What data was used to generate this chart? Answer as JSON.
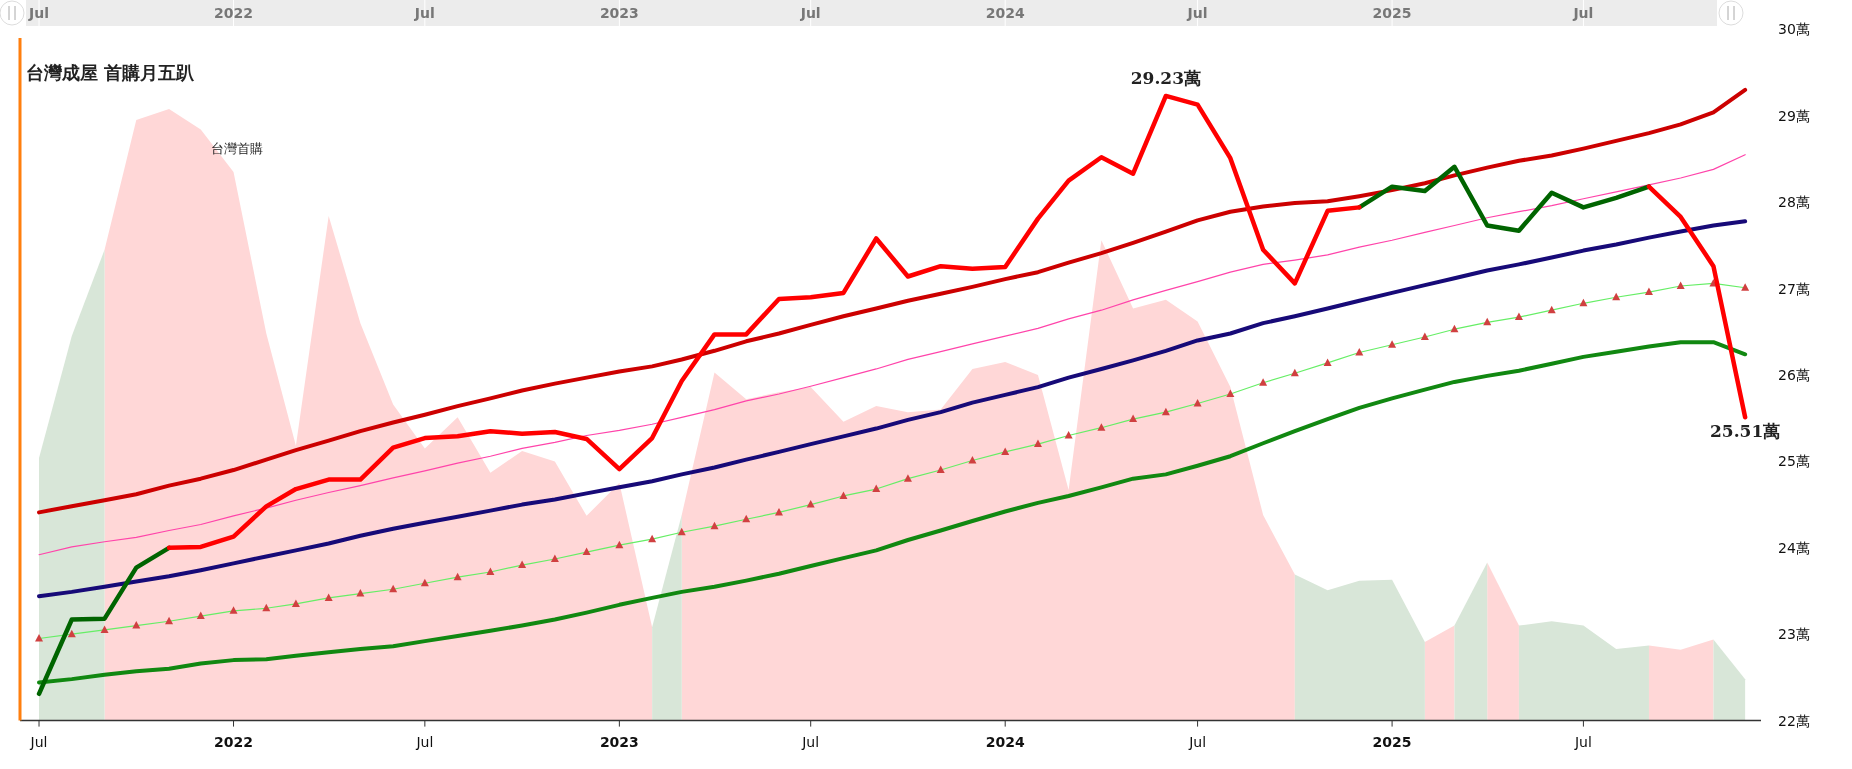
{
  "chart_data": {
    "type": "line",
    "title": "台灣成屋 首購月五趴",
    "x": [
      "2021-07",
      "2021-08",
      "2021-09",
      "2021-10",
      "2021-11",
      "2021-12",
      "2022-01",
      "2022-02",
      "2022-03",
      "2022-04",
      "2022-05",
      "2022-06",
      "2022-07",
      "2022-08",
      "2022-09",
      "2022-10",
      "2022-11",
      "2022-12",
      "2023-01",
      "2023-02",
      "2023-03",
      "2023-04",
      "2023-05",
      "2023-06",
      "2023-07",
      "2023-08",
      "2023-09",
      "2023-10",
      "2023-11",
      "2023-12",
      "2024-01",
      "2024-02",
      "2024-03",
      "2024-04",
      "2024-05",
      "2024-06",
      "2024-07",
      "2024-08",
      "2024-09",
      "2024-10",
      "2024-11",
      "2024-12",
      "2025-01",
      "2025-02",
      "2025-03",
      "2025-04",
      "2025-05",
      "2025-06",
      "2025-07",
      "2025-08",
      "2025-09",
      "2025-10",
      "2025-11",
      "2025-12"
    ],
    "xlim": [
      "2021-06-13",
      "2025-12-16"
    ],
    "xticks": [
      {
        "value": "2021-07",
        "label": "Jul"
      },
      {
        "value": "2022",
        "label": "2022"
      },
      {
        "value": "2022-07",
        "label": "Jul"
      },
      {
        "value": "2023",
        "label": "2023"
      },
      {
        "value": "2023-07",
        "label": "Jul"
      },
      {
        "value": "2024",
        "label": "2024"
      },
      {
        "value": "2024-07",
        "label": "Jul"
      },
      {
        "value": "2025",
        "label": "2025"
      },
      {
        "value": "2025-07",
        "label": "Jul"
      }
    ],
    "ylim": [
      22,
      30
    ],
    "yticks": [
      {
        "value": 22,
        "label": "22萬"
      },
      {
        "value": 23,
        "label": "23萬"
      },
      {
        "value": 24,
        "label": "24萬"
      },
      {
        "value": 25,
        "label": "25萬"
      },
      {
        "value": 26,
        "label": "26萬"
      },
      {
        "value": 27,
        "label": "27萬"
      },
      {
        "value": 28,
        "label": "28萬"
      },
      {
        "value": 29,
        "label": "29萬"
      },
      {
        "value": 30,
        "label": "30萬"
      }
    ],
    "grid": false,
    "legend": false,
    "series": [
      {
        "type": "area",
        "name": "台灣首購",
        "color": "#ffd7d7",
        "x": [
          "2021-09",
          "2021-10",
          "2021-11",
          "2021-12",
          "2022-01",
          "2022-02",
          "2022-03",
          "2022-04",
          "2022-05",
          "2022-06",
          "2022-07",
          "2022-08",
          "2022-09",
          "2022-10",
          "2022-11",
          "2022-12",
          "2023-01",
          "2023-02"
        ],
        "values": [
          27.45,
          28.95,
          29.08,
          28.84,
          28.35,
          26.48,
          25.18,
          27.84,
          26.6,
          25.66,
          25.15,
          25.51,
          24.87,
          25.12,
          25.0,
          24.37,
          24.75,
          23.08
        ]
      },
      {
        "type": "area",
        "color": "#ffd7d7",
        "x": [
          "2023-03",
          "2023-04",
          "2023-05",
          "2023-06",
          "2023-07",
          "2023-08",
          "2023-09",
          "2023-10",
          "2023-11",
          "2023-12",
          "2024-01",
          "2024-02",
          "2024-03",
          "2024-04",
          "2024-05",
          "2024-06",
          "2024-07",
          "2024-08",
          "2024-09",
          "2024-10"
        ],
        "values": [
          24.38,
          26.03,
          25.72,
          25.8,
          25.86,
          25.46,
          25.64,
          25.57,
          25.6,
          26.07,
          26.15,
          26.0,
          24.67,
          27.56,
          26.77,
          26.87,
          26.62,
          25.86,
          24.38,
          23.69
        ]
      },
      {
        "type": "area",
        "color": "#ffd7d7",
        "x": [
          "2025-02",
          "2025-03"
        ],
        "values": [
          22.91,
          23.1
        ]
      },
      {
        "type": "area",
        "color": "#ffd7d7",
        "x": [
          "2025-04",
          "2025-05"
        ],
        "values": [
          23.83,
          23.1
        ]
      },
      {
        "type": "area",
        "color": "#ffd7d7",
        "x": [
          "2025-09",
          "2025-10",
          "2025-11"
        ],
        "values": [
          22.87,
          22.82,
          22.94
        ]
      },
      {
        "type": "area",
        "color": "#d8e6d8",
        "x": [
          "2021-07",
          "2021-08",
          "2021-09"
        ],
        "values": [
          25.04,
          26.45,
          27.45
        ]
      },
      {
        "type": "area",
        "color": "#d8e6d8",
        "x": [
          "2023-02",
          "2023-03"
        ],
        "values": [
          23.08,
          24.38
        ]
      },
      {
        "type": "area",
        "color": "#d8e6d8",
        "x": [
          "2024-10",
          "2024-11",
          "2024-12",
          "2025-01",
          "2025-02"
        ],
        "values": [
          23.69,
          23.51,
          23.62,
          23.63,
          22.91
        ]
      },
      {
        "type": "area",
        "color": "#d8e6d8",
        "x": [
          "2025-03",
          "2025-04"
        ],
        "values": [
          23.1,
          23.83
        ]
      },
      {
        "type": "area",
        "color": "#d8e6d8",
        "x": [
          "2025-05",
          "2025-06",
          "2025-07",
          "2025-08",
          "2025-09"
        ],
        "values": [
          23.1,
          23.15,
          23.1,
          22.83,
          22.87
        ]
      },
      {
        "type": "area",
        "color": "#d8e6d8",
        "x": [
          "2025-11",
          "2025-12"
        ],
        "values": [
          22.94,
          22.48
        ]
      },
      {
        "color": "#118811",
        "values": [
          22.44,
          22.48,
          22.53,
          22.57,
          22.6,
          22.66,
          22.7,
          22.71,
          22.75,
          22.79,
          22.83,
          22.86,
          22.92,
          22.98,
          23.04,
          23.1,
          23.17,
          23.25,
          23.34,
          23.42,
          23.49,
          23.55,
          23.62,
          23.7,
          23.79,
          23.88,
          23.97,
          24.09,
          24.2,
          24.31,
          24.42,
          24.52,
          24.6,
          24.7,
          24.8,
          24.85,
          24.95,
          25.06,
          25.21,
          25.35,
          25.49,
          25.62,
          25.73,
          25.83,
          25.92,
          25.99,
          26.05,
          26.13,
          26.21,
          26.27,
          26.33,
          26.38,
          26.38,
          26.24
        ]
      },
      {
        "color": "#66ee66",
        "marker": "triangle",
        "colors": [
          "#d04040",
          "#d04040",
          "#d04040",
          "#d04040",
          "#d04040",
          "#d04040",
          "#d04040",
          "#d04040",
          "#d04040",
          "#d04040",
          "#d04040",
          "#d04040",
          "#d04040",
          "#d04040",
          "#d04040",
          "#d04040",
          "#d04040",
          "#d04040",
          "#d04040",
          "#d04040",
          "#d04040",
          "#d04040",
          "#d04040",
          "#d04040",
          "#d04040",
          "#d04040",
          "#d04040",
          "#d04040",
          "#d04040",
          "#d04040",
          "#d04040",
          "#d04040",
          "#d04040",
          "#d04040",
          "#d04040",
          "#d04040",
          "#d04040",
          "#d04040",
          "#d04040",
          "#d04040",
          "#d04040",
          "#d04040",
          "#d04040",
          "#d04040",
          "#d04040",
          "#d04040",
          "#d04040",
          "#d04040",
          "#d04040",
          "#d04040",
          "#d04040",
          "#d04040",
          "#d04040",
          "#d04040"
        ],
        "values": [
          22.95,
          23.0,
          23.05,
          23.1,
          23.15,
          23.21,
          23.27,
          23.3,
          23.35,
          23.42,
          23.47,
          23.52,
          23.59,
          23.66,
          23.72,
          23.8,
          23.87,
          23.95,
          24.03,
          24.1,
          24.18,
          24.25,
          24.33,
          24.41,
          24.5,
          24.6,
          24.68,
          24.8,
          24.9,
          25.01,
          25.11,
          25.2,
          25.3,
          25.39,
          25.49,
          25.57,
          25.67,
          25.78,
          25.91,
          26.02,
          26.14,
          26.26,
          26.35,
          26.44,
          26.53,
          26.61,
          26.67,
          26.75,
          26.83,
          26.9,
          26.96,
          27.03,
          27.06,
          27.01
        ]
      },
      {
        "color": "#170a78",
        "values": [
          23.44,
          23.49,
          23.55,
          23.61,
          23.67,
          23.74,
          23.82,
          23.9,
          23.97,
          24.05,
          24.14,
          24.22,
          24.29,
          24.36,
          24.43,
          24.5,
          24.56,
          24.63,
          24.7,
          24.77,
          24.85,
          24.93,
          25.02,
          25.11,
          25.2,
          25.29,
          25.38,
          25.48,
          25.57,
          25.68,
          25.77,
          25.86,
          25.97,
          26.07,
          26.17,
          26.28,
          26.4,
          26.48,
          26.6,
          26.68,
          26.77,
          26.86,
          26.95,
          27.04,
          27.12,
          27.21,
          27.28,
          27.36,
          27.44,
          27.51,
          27.59,
          27.66,
          27.73,
          27.78
        ]
      },
      {
        "color": "#ff44aa",
        "values": [
          23.92,
          24.01,
          24.07,
          24.12,
          24.2,
          24.27,
          24.37,
          24.46,
          24.55,
          24.64,
          24.72,
          24.81,
          24.89,
          24.98,
          25.06,
          25.15,
          25.22,
          25.3,
          25.36,
          25.43,
          25.51,
          25.6,
          25.7,
          25.78,
          25.87,
          25.97,
          26.07,
          26.18,
          26.27,
          26.36,
          26.45,
          26.54,
          26.65,
          26.75,
          26.87,
          26.98,
          27.08,
          27.19,
          27.28,
          27.33,
          27.39,
          27.48,
          27.56,
          27.65,
          27.73,
          27.82,
          27.89,
          27.96,
          28.04,
          28.12,
          28.2,
          28.28,
          28.38,
          28.55
        ]
      },
      {
        "color": "#cc0000",
        "values": [
          24.41,
          24.48,
          24.55,
          24.62,
          24.72,
          24.8,
          24.9,
          25.02,
          25.13,
          25.24,
          25.35,
          25.45,
          25.54,
          25.64,
          25.73,
          25.82,
          25.9,
          25.97,
          26.04,
          26.1,
          26.18,
          26.28,
          26.39,
          26.48,
          26.58,
          26.68,
          26.77,
          26.86,
          26.94,
          27.02,
          27.11,
          27.19,
          27.3,
          27.41,
          27.53,
          27.66,
          27.79,
          27.89,
          27.95,
          27.99,
          28.01,
          28.07,
          28.14,
          28.22,
          28.31,
          28.4,
          28.48,
          28.54,
          28.62,
          28.71,
          28.8,
          28.9,
          29.04,
          29.3
        ]
      },
      {
        "color": "#006400",
        "values": [
          22.31,
          23.17,
          23.18,
          23.77,
          24.0,
          null,
          null,
          null,
          null,
          null,
          null,
          null,
          null,
          null,
          null,
          null,
          null,
          null,
          null,
          null,
          null,
          null,
          null,
          null,
          null,
          null,
          null,
          null,
          null,
          null,
          null,
          null,
          null,
          null,
          null,
          null,
          null,
          null,
          null,
          null,
          null,
          27.94,
          28.18,
          28.13,
          28.41,
          27.73,
          27.67,
          28.11,
          27.94,
          28.05,
          28.18,
          null,
          null,
          null
        ]
      },
      {
        "color": "#ff0000",
        "values": [
          null,
          null,
          null,
          null,
          24.0,
          24.01,
          24.13,
          24.48,
          24.68,
          24.79,
          24.79,
          25.16,
          25.27,
          25.29,
          25.35,
          25.32,
          25.34,
          25.26,
          24.91,
          25.27,
          25.93,
          26.47,
          26.47,
          26.88,
          26.9,
          26.95,
          27.58,
          27.14,
          27.26,
          27.23,
          27.25,
          27.81,
          28.25,
          28.52,
          28.33,
          29.23,
          29.13,
          28.51,
          27.45,
          27.06,
          27.9,
          27.94,
          null,
          null,
          null,
          null,
          null,
          null,
          null,
          null,
          28.18,
          27.83,
          27.26,
          25.51
        ]
      }
    ],
    "annotations": [
      {
        "text": "29.23萬",
        "x": "2024-06",
        "y": 29.23
      },
      {
        "text": "25.51萬",
        "x": "2025-12",
        "y": 25.51
      }
    ]
  }
}
